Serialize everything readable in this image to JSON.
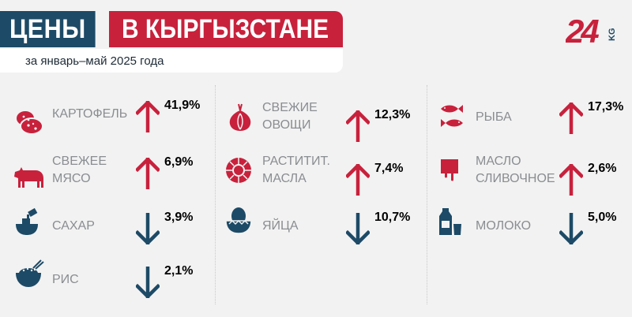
{
  "header": {
    "title_left": "ЦЕНЫ",
    "title_right": "В КЫРГЫЗСТАНЕ",
    "subtitle": "за январь–май 2025 года",
    "logo_number": "24",
    "logo_suffix": "KG"
  },
  "colors": {
    "up": "#c8213c",
    "down": "#1d4a66",
    "label": "#8a8d91",
    "background": "#f2f2f2"
  },
  "items": [
    {
      "label_lines": [
        "КАРТОФЕЛЬ"
      ],
      "value": "41,9%",
      "direction": "up",
      "icon": "potato-icon"
    },
    {
      "label_lines": [
        "СВЕЖЕЕ",
        "МЯСО"
      ],
      "value": "6,9%",
      "direction": "up",
      "icon": "cow-icon"
    },
    {
      "label_lines": [
        "САХАР"
      ],
      "value": "3,9%",
      "direction": "down",
      "icon": "sugar-bowl-icon"
    },
    {
      "label_lines": [
        "РИС"
      ],
      "value": "2,1%",
      "direction": "down",
      "icon": "rice-bowl-icon"
    },
    {
      "label_lines": [
        "СВЕЖИЕ",
        "ОВОЩИ"
      ],
      "value": "12,3%",
      "direction": "up",
      "icon": "onion-icon"
    },
    {
      "label_lines": [
        "РАСТИТИТ.",
        "МАСЛА"
      ],
      "value": "7,4%",
      "direction": "up",
      "icon": "sunflower-icon"
    },
    {
      "label_lines": [
        "ЯЙЦА"
      ],
      "value": "10,7%",
      "direction": "down",
      "icon": "egg-basket-icon"
    },
    {
      "label_lines": [
        "РЫБА"
      ],
      "value": "17,3%",
      "direction": "up",
      "icon": "fish-icon"
    },
    {
      "label_lines": [
        "МАСЛО",
        "СЛИВОЧНОЕ"
      ],
      "value": "2,6%",
      "direction": "up",
      "icon": "butter-icon"
    },
    {
      "label_lines": [
        "МОЛОКО"
      ],
      "value": "5,0%",
      "direction": "down",
      "icon": "milk-icon"
    }
  ]
}
